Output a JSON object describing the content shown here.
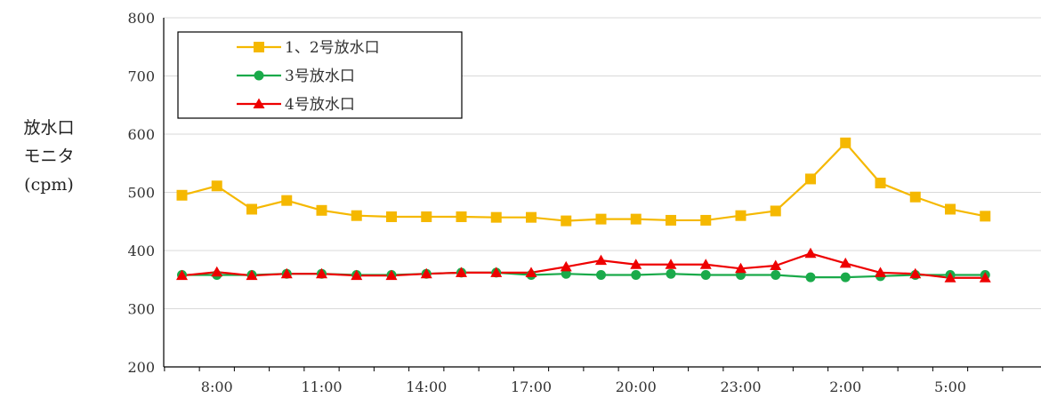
{
  "chart_data": {
    "type": "line",
    "ylabel_lines": [
      "放水口",
      "モニタ",
      "(cpm)"
    ],
    "ylim": [
      200,
      800
    ],
    "yticks": [
      200,
      300,
      400,
      500,
      600,
      700,
      800
    ],
    "grid": true,
    "legend_position": "top-left",
    "x_tick_labels": [
      "8:00",
      "11:00",
      "14:00",
      "17:00",
      "20:00",
      "23:00",
      "2:00",
      "5:00"
    ],
    "x": [
      "7:00",
      "8:00",
      "9:00",
      "10:00",
      "11:00",
      "12:00",
      "13:00",
      "14:00",
      "15:00",
      "16:00",
      "17:00",
      "18:00",
      "19:00",
      "20:00",
      "21:00",
      "22:00",
      "23:00",
      "0:00",
      "1:00",
      "2:00",
      "3:00",
      "4:00",
      "5:00",
      "6:00"
    ],
    "series": [
      {
        "name": "1、2号放水口",
        "color": "#f5b800",
        "marker": "square",
        "values": [
          495,
          511,
          471,
          486,
          469,
          460,
          458,
          458,
          458,
          457,
          457,
          451,
          454,
          454,
          452,
          452,
          460,
          468,
          523,
          585,
          516,
          492,
          471,
          459
        ]
      },
      {
        "name": "3号放水口",
        "color": "#1aaa4a",
        "marker": "circle",
        "values": [
          358,
          358,
          358,
          360,
          360,
          358,
          358,
          360,
          362,
          362,
          358,
          360,
          358,
          358,
          360,
          358,
          358,
          358,
          354,
          354,
          356,
          358,
          358,
          358
        ]
      },
      {
        "name": "4号放水口",
        "color": "#ee0000",
        "marker": "triangle",
        "values": [
          357,
          363,
          357,
          360,
          360,
          357,
          357,
          360,
          362,
          362,
          362,
          372,
          383,
          376,
          376,
          376,
          369,
          374,
          395,
          378,
          362,
          360,
          353,
          353
        ]
      }
    ]
  }
}
